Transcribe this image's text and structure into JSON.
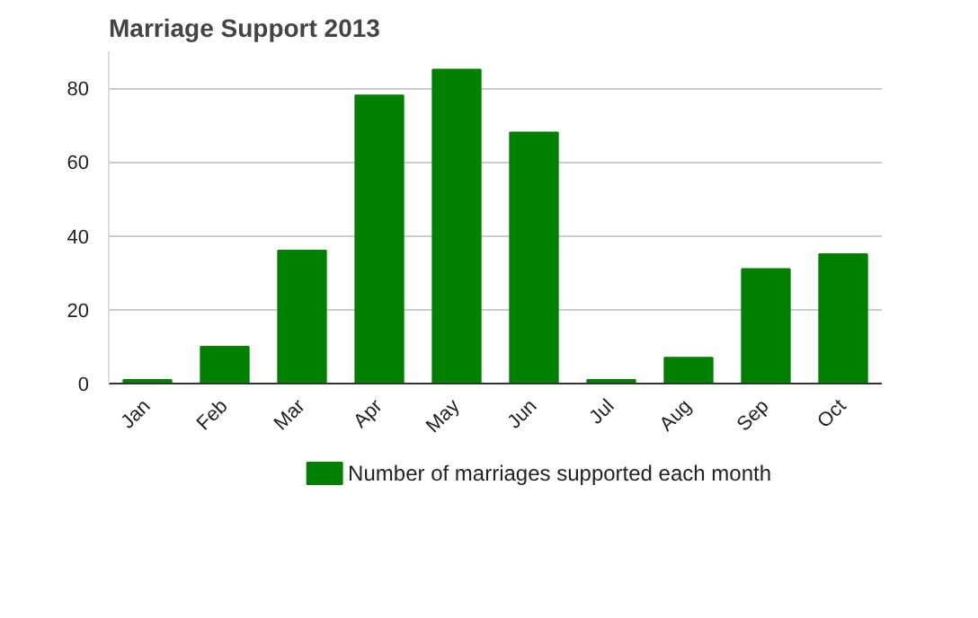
{
  "chart_data": {
    "type": "bar",
    "title": "Marriage Support 2013",
    "categories": [
      "Jan",
      "Feb",
      "Mar",
      "Apr",
      "May",
      "Jun",
      "Jul",
      "Aug",
      "Sep",
      "Oct"
    ],
    "series": [
      {
        "name": "Number of marriages supported each month",
        "color": "#008000",
        "values": [
          1,
          10,
          36,
          78,
          85,
          68,
          1,
          7,
          31,
          35
        ]
      }
    ],
    "ylim": [
      0,
      90
    ],
    "yticks": [
      0,
      20,
      40,
      60,
      80
    ],
    "grid": "y",
    "legend": "bottom"
  }
}
